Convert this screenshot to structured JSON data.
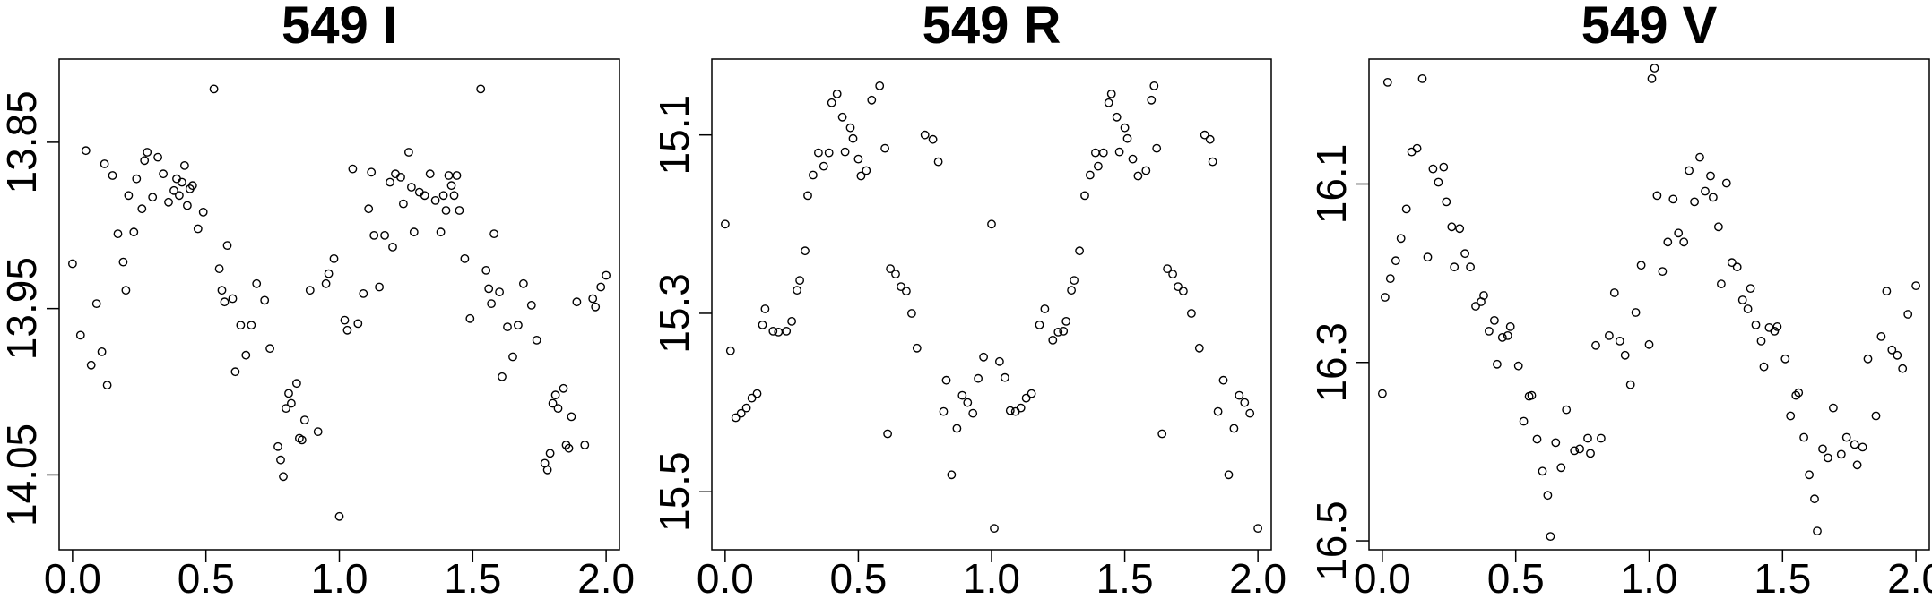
{
  "chart_data": [
    {
      "type": "scatter",
      "title": "549 I",
      "xlabel": "",
      "ylabel": "",
      "xlim": [
        -0.05,
        2.05
      ],
      "ylim": [
        14.095,
        13.8
      ],
      "y_inverted": true,
      "xticks": [
        "0.0",
        "0.5",
        "1.0",
        "1.5",
        "2.0"
      ],
      "yticks": [
        "13.85",
        "13.95",
        "14.05"
      ],
      "grid": false,
      "points_x": [
        0.0,
        0.03,
        0.05,
        0.07,
        0.09,
        0.11,
        0.12,
        0.13,
        0.15,
        0.17,
        0.19,
        0.2,
        0.21,
        0.23,
        0.24,
        0.26,
        0.27,
        0.28,
        0.3,
        0.32,
        0.34,
        0.36,
        0.38,
        0.39,
        0.4,
        0.41,
        0.42,
        0.43,
        0.44,
        0.45,
        0.47,
        0.49,
        0.53,
        0.55,
        0.56,
        0.57,
        0.58,
        0.6,
        0.61,
        0.63,
        0.65,
        0.67,
        0.69,
        0.72,
        0.74,
        0.77,
        0.78,
        0.79,
        0.8,
        0.81,
        0.82,
        0.84,
        0.85,
        0.86,
        0.87,
        0.89,
        0.92,
        0.95,
        0.96,
        0.98,
        1.0,
        1.02,
        1.03,
        1.05,
        1.07,
        1.09,
        1.11,
        1.12,
        1.13,
        1.15,
        1.17,
        1.19,
        1.2,
        1.21,
        1.23,
        1.24,
        1.26,
        1.27,
        1.28,
        1.3,
        1.32,
        1.34,
        1.36,
        1.38,
        1.39,
        1.4,
        1.41,
        1.42,
        1.43,
        1.44,
        1.45,
        1.47,
        1.49,
        1.53,
        1.55,
        1.56,
        1.57,
        1.58,
        1.6,
        1.61,
        1.63,
        1.65,
        1.67,
        1.69,
        1.72,
        1.74,
        1.77,
        1.78,
        1.79,
        1.8,
        1.81,
        1.82,
        1.84,
        1.85,
        1.86,
        1.87,
        1.89,
        1.92,
        1.95,
        1.96,
        1.98,
        2.0
      ],
      "points_y": [
        13.923,
        13.966,
        13.855,
        13.984,
        13.947,
        13.976,
        13.863,
        13.996,
        13.87,
        13.905,
        13.922,
        13.939,
        13.882,
        13.904,
        13.872,
        13.89,
        13.861,
        13.856,
        13.883,
        13.859,
        13.869,
        13.886,
        13.879,
        13.872,
        13.882,
        13.874,
        13.864,
        13.888,
        13.878,
        13.876,
        13.902,
        13.892,
        13.818,
        13.926,
        13.939,
        13.946,
        13.912,
        13.944,
        13.988,
        13.96,
        13.978,
        13.96,
        13.935,
        13.945,
        13.974,
        14.033,
        14.041,
        14.051,
        14.01,
        14.001,
        14.007,
        13.995,
        14.028,
        14.029,
        14.017,
        13.939,
        14.024,
        13.935,
        13.929,
        13.92,
        14.075,
        13.957,
        13.963,
        13.866,
        13.959,
        13.941,
        13.89,
        13.868,
        13.906,
        13.937,
        13.906,
        13.874,
        13.913,
        13.869,
        13.871,
        13.887,
        13.856,
        13.877,
        13.904,
        13.88,
        13.882,
        13.869,
        13.885,
        13.904,
        13.882,
        13.891,
        13.87,
        13.876,
        13.882,
        13.87,
        13.891,
        13.92,
        13.956,
        13.818,
        13.927,
        13.938,
        13.947,
        13.905,
        13.94,
        13.991,
        13.961,
        13.979,
        13.96,
        13.935,
        13.948,
        13.969,
        14.043,
        14.047,
        14.037,
        14.007,
        14.002,
        14.01,
        13.998,
        14.032,
        14.034,
        14.015,
        13.946,
        14.032,
        13.944,
        13.949,
        13.937,
        13.93
      ]
    },
    {
      "type": "scatter",
      "title": "549 R",
      "xlabel": "",
      "ylabel": "",
      "xlim": [
        -0.05,
        2.05
      ],
      "ylim": [
        15.565,
        15.015
      ],
      "y_inverted": true,
      "xticks": [
        "0.0",
        "0.5",
        "1.0",
        "1.5",
        "2.0"
      ],
      "yticks": [
        "15.1",
        "15.3",
        "15.5"
      ],
      "grid": false,
      "points_x": [
        0.0,
        0.02,
        0.04,
        0.06,
        0.08,
        0.1,
        0.12,
        0.14,
        0.15,
        0.18,
        0.2,
        0.23,
        0.25,
        0.27,
        0.28,
        0.3,
        0.31,
        0.33,
        0.35,
        0.37,
        0.39,
        0.4,
        0.42,
        0.44,
        0.45,
        0.47,
        0.48,
        0.5,
        0.51,
        0.53,
        0.55,
        0.58,
        0.6,
        0.61,
        0.62,
        0.64,
        0.66,
        0.68,
        0.7,
        0.72,
        0.75,
        0.78,
        0.8,
        0.82,
        0.83,
        0.85,
        0.87,
        0.89,
        0.91,
        0.93,
        0.95,
        0.97,
        1.0,
        1.01,
        1.03,
        1.05,
        1.07,
        1.09,
        1.11,
        1.13,
        1.15,
        1.18,
        1.2,
        1.23,
        1.25,
        1.27,
        1.28,
        1.3,
        1.31,
        1.33,
        1.35,
        1.37,
        1.39,
        1.4,
        1.42,
        1.44,
        1.45,
        1.47,
        1.48,
        1.5,
        1.51,
        1.53,
        1.55,
        1.58,
        1.6,
        1.61,
        1.62,
        1.64,
        1.66,
        1.68,
        1.7,
        1.72,
        1.75,
        1.78,
        1.8,
        1.82,
        1.83,
        1.85,
        1.87,
        1.89,
        1.91,
        1.93,
        1.95,
        1.97,
        2.0
      ],
      "points_y": [
        15.2,
        15.342,
        15.417,
        15.412,
        15.406,
        15.395,
        15.39,
        15.313,
        15.295,
        15.32,
        15.321,
        15.32,
        15.309,
        15.274,
        15.263,
        15.23,
        15.168,
        15.145,
        15.12,
        15.135,
        15.12,
        15.064,
        15.054,
        15.08,
        15.119,
        15.092,
        15.104,
        15.127,
        15.146,
        15.14,
        15.061,
        15.045,
        15.115,
        15.435,
        15.25,
        15.256,
        15.27,
        15.275,
        15.3,
        15.339,
        15.1,
        15.105,
        15.13,
        15.41,
        15.375,
        15.481,
        15.429,
        15.392,
        15.4,
        15.412,
        15.373,
        15.349,
        15.2,
        15.541,
        15.354,
        15.372,
        15.409,
        15.41,
        15.406,
        15.395,
        15.39,
        15.313,
        15.295,
        15.33,
        15.321,
        15.32,
        15.309,
        15.274,
        15.263,
        15.23,
        15.168,
        15.145,
        15.12,
        15.135,
        15.12,
        15.064,
        15.054,
        15.08,
        15.119,
        15.092,
        15.104,
        15.127,
        15.146,
        15.14,
        15.061,
        15.045,
        15.115,
        15.435,
        15.25,
        15.256,
        15.27,
        15.275,
        15.3,
        15.339,
        15.1,
        15.105,
        15.13,
        15.41,
        15.375,
        15.481,
        15.429,
        15.392,
        15.4,
        15.412,
        15.541
      ]
    },
    {
      "type": "scatter",
      "title": "549 V",
      "xlabel": "",
      "ylabel": "",
      "xlim": [
        -0.05,
        2.05
      ],
      "ylim": [
        16.51,
        15.96
      ],
      "y_inverted": true,
      "xticks": [
        "0.0",
        "0.5",
        "1.0",
        "1.5",
        "2.0"
      ],
      "yticks": [
        "16.1",
        "16.3",
        "16.5"
      ],
      "grid": false,
      "points_x": [
        0.0,
        0.01,
        0.02,
        0.03,
        0.05,
        0.07,
        0.09,
        0.11,
        0.13,
        0.15,
        0.17,
        0.19,
        0.21,
        0.23,
        0.24,
        0.26,
        0.27,
        0.29,
        0.31,
        0.33,
        0.35,
        0.37,
        0.38,
        0.4,
        0.42,
        0.43,
        0.45,
        0.47,
        0.48,
        0.51,
        0.53,
        0.55,
        0.56,
        0.58,
        0.6,
        0.62,
        0.63,
        0.65,
        0.67,
        0.69,
        0.72,
        0.74,
        0.77,
        0.78,
        0.8,
        0.82,
        0.85,
        0.87,
        0.89,
        0.91,
        0.93,
        0.95,
        0.97,
        1.0,
        1.01,
        1.02,
        1.03,
        1.05,
        1.07,
        1.09,
        1.11,
        1.13,
        1.15,
        1.17,
        1.19,
        1.21,
        1.23,
        1.24,
        1.26,
        1.27,
        1.29,
        1.31,
        1.33,
        1.35,
        1.37,
        1.38,
        1.4,
        1.42,
        1.43,
        1.45,
        1.47,
        1.48,
        1.51,
        1.53,
        1.55,
        1.56,
        1.58,
        1.6,
        1.62,
        1.63,
        1.65,
        1.67,
        1.69,
        1.72,
        1.74,
        1.77,
        1.78,
        1.8,
        1.82,
        1.85,
        1.87,
        1.89,
        1.91,
        1.93,
        1.95,
        1.97,
        2.0
      ],
      "points_y": [
        16.335,
        16.227,
        15.986,
        16.206,
        16.186,
        16.161,
        16.128,
        16.064,
        16.06,
        15.982,
        16.182,
        16.083,
        16.098,
        16.081,
        16.12,
        16.148,
        16.193,
        16.15,
        16.178,
        16.193,
        16.237,
        16.232,
        16.225,
        16.265,
        16.253,
        16.302,
        16.272,
        16.27,
        16.26,
        16.304,
        16.366,
        16.338,
        16.337,
        16.386,
        16.422,
        16.449,
        16.495,
        16.39,
        16.418,
        16.353,
        16.399,
        16.397,
        16.385,
        16.402,
        16.281,
        16.385,
        16.27,
        16.222,
        16.276,
        16.292,
        16.325,
        16.244,
        16.191,
        16.28,
        15.982,
        15.97,
        16.113,
        16.198,
        16.165,
        16.117,
        16.155,
        16.165,
        16.085,
        16.12,
        16.07,
        16.108,
        16.091,
        16.115,
        16.148,
        16.212,
        16.099,
        16.188,
        16.193,
        16.23,
        16.24,
        16.217,
        16.258,
        16.276,
        16.305,
        16.261,
        16.265,
        16.26,
        16.296,
        16.36,
        16.337,
        16.334,
        16.384,
        16.426,
        16.453,
        16.489,
        16.397,
        16.407,
        16.351,
        16.403,
        16.384,
        16.392,
        16.415,
        16.395,
        16.296,
        16.36,
        16.271,
        16.22,
        16.286,
        16.292,
        16.307,
        16.246,
        16.214
      ]
    }
  ]
}
